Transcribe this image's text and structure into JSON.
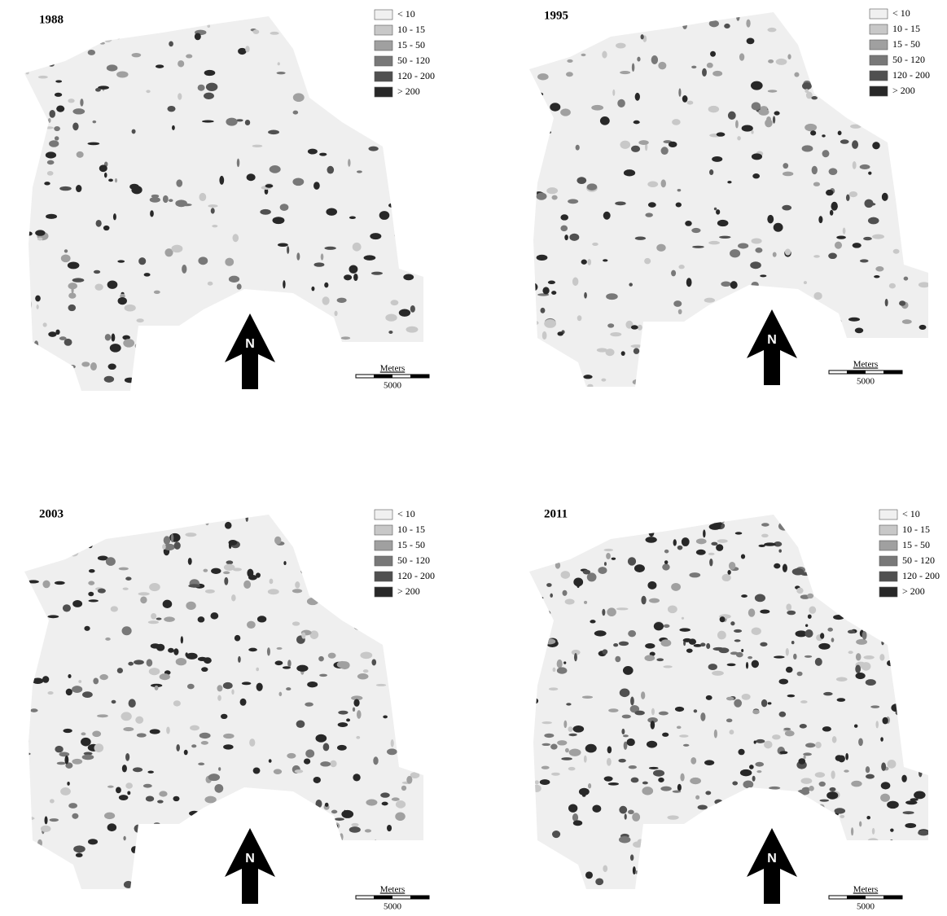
{
  "panels": [
    {
      "year": "1988",
      "north": "N",
      "scale_unit": "Meters",
      "scale_length": "5000"
    },
    {
      "year": "1995",
      "north": "N",
      "scale_unit": "Meters",
      "scale_length": "5000"
    },
    {
      "year": "2003",
      "north": "N",
      "scale_unit": "Meters",
      "scale_length": "5000"
    },
    {
      "year": "2011",
      "north": "N",
      "scale_unit": "Meters",
      "scale_length": "5000"
    }
  ],
  "legend": [
    {
      "label": "< 10",
      "color": "#f0f0f0"
    },
    {
      "label": "10 - 15",
      "color": "#c8c8c8"
    },
    {
      "label": "15 - 50",
      "color": "#a0a0a0"
    },
    {
      "label": "50 - 120",
      "color": "#787878"
    },
    {
      "label": "120 - 200",
      "color": "#505050"
    },
    {
      "label": "> 200",
      "color": "#282828"
    }
  ]
}
